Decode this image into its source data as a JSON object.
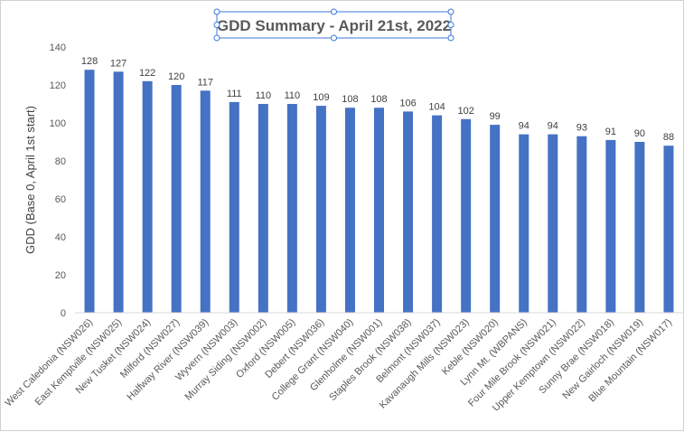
{
  "chart_data": {
    "type": "bar",
    "title": "GDD Summary - April 21st, 2022",
    "xlabel": "",
    "ylabel": "GDD (Base 0, April 1st start)",
    "ylim": [
      0,
      140
    ],
    "yticks": [
      0,
      20,
      40,
      60,
      80,
      100,
      120,
      140
    ],
    "grid": false,
    "legend": "none",
    "bar_color": "#4472C4",
    "categories": [
      "West Caledonia (NSW026)",
      "East Kemptville (NSW025)",
      "New Tusket (NSW024)",
      "Milford (NSW027)",
      "Halfway River (NSW039)",
      "Wyvern (NSW003)",
      "Murray Siding (NSW002)",
      "Oxford (NSW005)",
      "Debert (NSW036)",
      "College Grant (NSW040)",
      "Glenholme (NSW001)",
      "Staples Brook (NSW038)",
      "Belmont (NSW037)",
      "Kavanaugh Mills (NSW023)",
      "Keble (NSW020)",
      "Lynn Mt. (WBPANS)",
      "Four Mile Brook (NSW021)",
      "Upper Kemptown (NSW022)",
      "Sunny Brae (NSW018)",
      "New Gairloch (NSW019)",
      "Blue Mountain (NSW017)"
    ],
    "values": [
      128,
      127,
      122,
      120,
      117,
      111,
      110,
      110,
      109,
      108,
      108,
      106,
      104,
      102,
      99,
      94,
      94,
      93,
      91,
      90,
      88
    ]
  }
}
